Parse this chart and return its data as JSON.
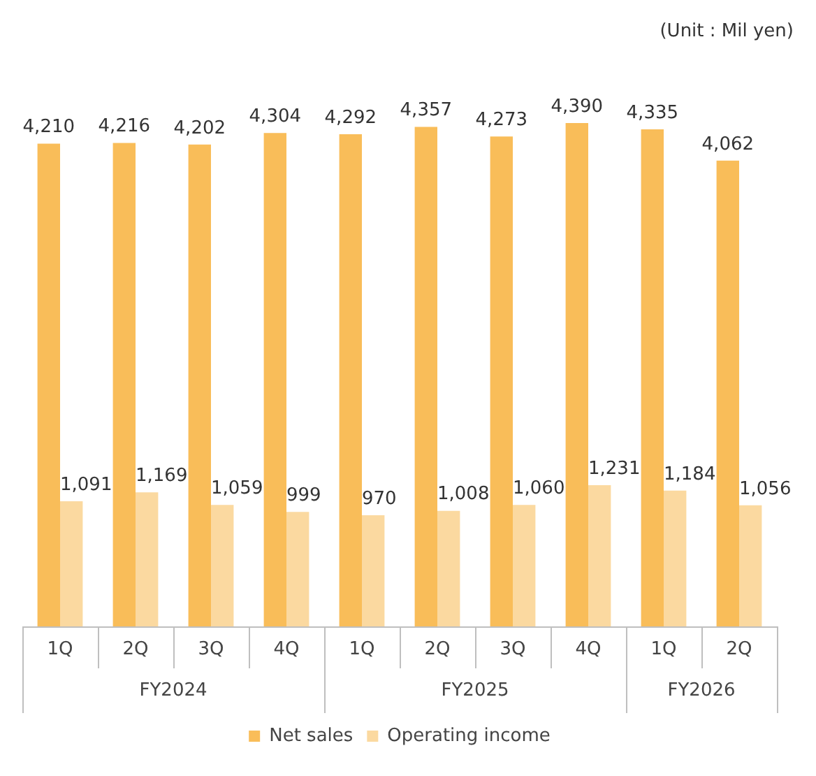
{
  "chart_data": {
    "type": "bar",
    "categories": [
      "1Q",
      "2Q",
      "3Q",
      "4Q",
      "1Q",
      "2Q",
      "3Q",
      "4Q",
      "1Q",
      "2Q"
    ],
    "series": [
      {
        "name": "Net sales",
        "color": "#f9bd59",
        "values": [
          4210,
          4216,
          4202,
          4304,
          4292,
          4357,
          4273,
          4390,
          4335,
          4062
        ],
        "value_labels": [
          "4,210",
          "4,216",
          "4,202",
          "4,304",
          "4,292",
          "4,357",
          "4,273",
          "4,390",
          "4,335",
          "4,062"
        ]
      },
      {
        "name": "Operating income",
        "color": "#fbd9a0",
        "values": [
          1091,
          1169,
          1059,
          999,
          970,
          1008,
          1060,
          1231,
          1184,
          1056
        ],
        "value_labels": [
          "1,091",
          "1,169",
          "1,059",
          "999",
          "970",
          "1,008",
          "1,060",
          "1,231",
          "1,184",
          "1,056"
        ]
      }
    ],
    "legend": "bottom",
    "grid": false,
    "annotations": [
      "(Unit : Mil yen)",
      "FY2024",
      "FY2025",
      "FY2026"
    ]
  }
}
